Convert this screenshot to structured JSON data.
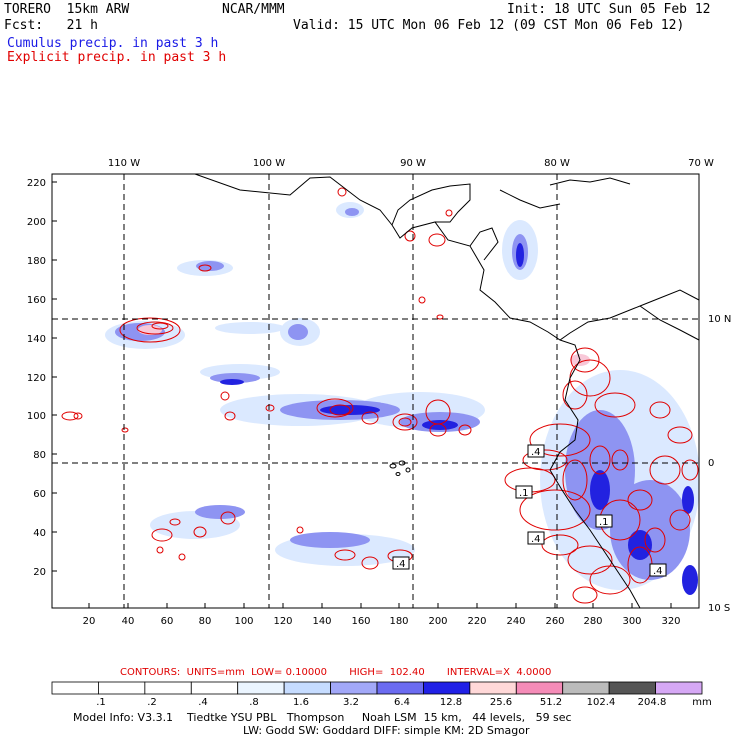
{
  "header": {
    "model": "TORERO  15km ARW",
    "org": "NCAR/MMM",
    "init": "Init: 18 UTC Sun 05 Feb 12",
    "fcst": "Fcst:   21 h",
    "valid": "Valid: 15 UTC Mon 06 Feb 12 (09 CST Mon 06 Feb 12)",
    "legend_cumulus": "Cumulus precip. in past 3 h",
    "legend_explicit": "Explicit precip. in past 3 h"
  },
  "axes": {
    "top_lon": [
      "110 W",
      "100 W",
      "90 W",
      "80 W",
      "70 W"
    ],
    "right_lat": [
      "10 N",
      "0",
      "10 S"
    ],
    "left_y": [
      "220",
      "200",
      "180",
      "160",
      "140",
      "120",
      "100",
      "80",
      "60",
      "40",
      "20"
    ],
    "bottom_x": [
      "20",
      "40",
      "60",
      "80",
      "100",
      "120",
      "140",
      "160",
      "180",
      "200",
      "220",
      "240",
      "260",
      "280",
      "300",
      "320"
    ]
  },
  "contour_labels": [
    ".4",
    ".4",
    ".1",
    ".4",
    ".4",
    ".1"
  ],
  "contours_info": {
    "text": "CONTOURS:  UNITS=mm  LOW= 0.10000       HIGH=  102.40       INTERVAL=X  4.0000"
  },
  "colorbar": {
    "labels": [
      ".1",
      ".2",
      ".4",
      ".8",
      "1.6",
      "3.2",
      "6.4",
      "12.8",
      "25.6",
      "51.2",
      "102.4",
      "204.8"
    ],
    "unit": "mm",
    "colors": [
      "#ffffff",
      "#ffffff",
      "#ffffff",
      "#ffffff",
      "#ebf5ff",
      "#c6dcff",
      "#a2a8f8",
      "#6b6bf0",
      "#2020e6",
      "#ffd8d8",
      "#f58cb8",
      "#bbbbbb",
      "#555555",
      "#d6a8f5"
    ]
  },
  "footer": {
    "line1": "Model Info: V3.3.1    Tiedtke YSU PBL   Thompson     Noah LSM  15 km,   44 levels,   59 sec",
    "line2": "LW: Godd SW: Goddard DIFF: simple KM: 2D Smagor"
  }
}
